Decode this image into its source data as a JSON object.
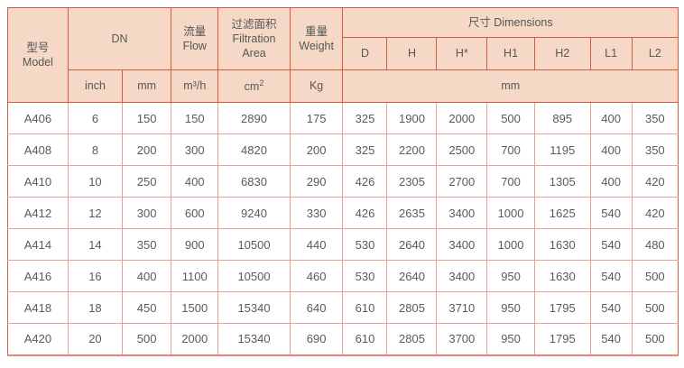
{
  "table": {
    "header": {
      "model_zh": "型号",
      "model_en": "Model",
      "dn": "DN",
      "flow_zh": "流量",
      "flow_en": "Flow",
      "filtration_zh": "过滤面积",
      "filtration_en_line1": "Filtration",
      "filtration_en_line2": "Area",
      "weight_zh": "重量",
      "weight_en": "Weight",
      "dimensions": "尺寸 Dimensions",
      "dim_cols": [
        "D",
        "H",
        "H*",
        "H1",
        "H2",
        "L1",
        "L2"
      ]
    },
    "units": {
      "inch": "inch",
      "mm": "mm",
      "flow": "m³/h",
      "area_base": "cm",
      "area_sup": "2",
      "weight": "Kg",
      "dimensions_mm": "mm"
    },
    "rows": [
      [
        "A406",
        "6",
        "150",
        "150",
        "2890",
        "175",
        "325",
        "1900",
        "2000",
        "500",
        "895",
        "400",
        "350"
      ],
      [
        "A408",
        "8",
        "200",
        "300",
        "4820",
        "200",
        "325",
        "2200",
        "2500",
        "700",
        "1195",
        "400",
        "350"
      ],
      [
        "A410",
        "10",
        "250",
        "400",
        "6830",
        "290",
        "426",
        "2305",
        "2700",
        "700",
        "1305",
        "400",
        "420"
      ],
      [
        "A412",
        "12",
        "300",
        "600",
        "9240",
        "330",
        "426",
        "2635",
        "3400",
        "1000",
        "1625",
        "540",
        "420"
      ],
      [
        "A414",
        "14",
        "350",
        "900",
        "10500",
        "440",
        "530",
        "2640",
        "3400",
        "1000",
        "1630",
        "540",
        "480"
      ],
      [
        "A416",
        "16",
        "400",
        "1100",
        "10500",
        "460",
        "530",
        "2640",
        "3400",
        "950",
        "1630",
        "540",
        "500"
      ],
      [
        "A418",
        "18",
        "450",
        "1500",
        "15340",
        "640",
        "610",
        "2805",
        "3710",
        "950",
        "1795",
        "540",
        "500"
      ],
      [
        "A420",
        "20",
        "500",
        "2000",
        "15340",
        "690",
        "610",
        "2805",
        "3700",
        "950",
        "1795",
        "540",
        "500"
      ]
    ]
  },
  "colors": {
    "header_bg": "#f5d9c6",
    "header_border": "#d25b41",
    "grid_border": "#ec9f94",
    "frame_bottom": "#e28478",
    "text": "#5a5a5a"
  }
}
